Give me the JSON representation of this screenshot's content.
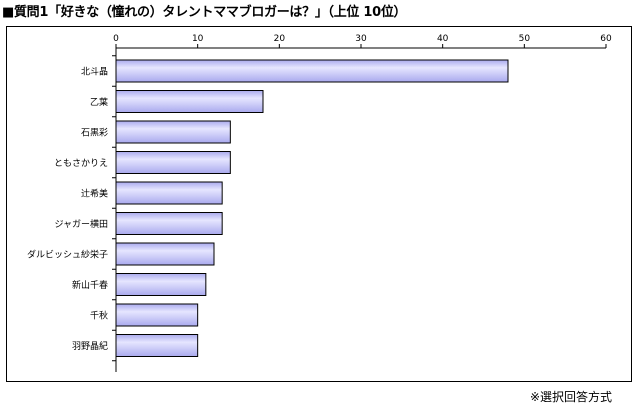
{
  "title": "■質問1「好きな（憧れの）タレントママブロガーは？」（上位 10位）",
  "footnote": "※選択回答方式",
  "chart_data": {
    "type": "bar",
    "orientation": "horizontal",
    "categories": [
      "北斗晶",
      "乙葉",
      "石黒彩",
      "ともさかりえ",
      "辻希美",
      "ジャガー横田",
      "ダルビッシュ紗栄子",
      "新山千春",
      "千秋",
      "羽野晶紀"
    ],
    "values": [
      48,
      18,
      14,
      14,
      13,
      13,
      12,
      11,
      10,
      10
    ],
    "xlim": [
      0,
      60
    ],
    "ticks": [
      0,
      10,
      20,
      30,
      40,
      50,
      60
    ],
    "tick_labels": [
      "0",
      "10",
      "20",
      "30",
      "40",
      "50",
      "60"
    ],
    "axis_position": "top",
    "grid": false,
    "legend": "none",
    "bar_color": "#aaaaee",
    "bar_gradient_light": "#e6e6ff",
    "bar_edge": "#000000"
  }
}
